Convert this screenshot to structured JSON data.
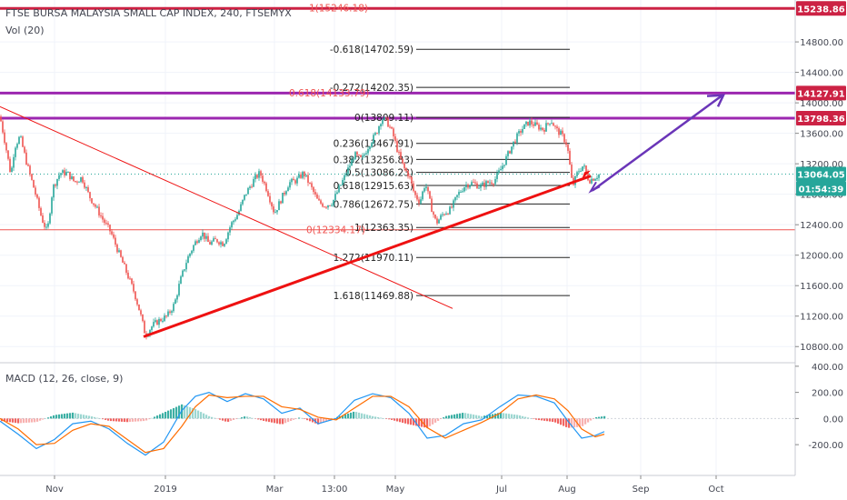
{
  "header": {
    "symbol_line": "FTSE BURSA MALAYSIA SMALL CAP INDEX, 240, FTSEMYX",
    "volume_label": "Vol (20)",
    "macd_label": "MACD (12, 26, close, 9)"
  },
  "colors": {
    "up": "#26a69a",
    "down": "#ef5350",
    "level_line": "#cc2244",
    "purple": "#9c27b0",
    "trend": "#ee1111",
    "arrow": "#6a35b8",
    "macd_line": "#2196f3",
    "signal_line": "#ff6d00",
    "current_price": "#26a69a"
  },
  "chart_data": {
    "type": "candlestick",
    "x_ticks": [
      "Nov",
      "2019",
      "Mar",
      "13:00",
      "May",
      "Jul",
      "Aug",
      "Sep",
      "Oct"
    ],
    "price_axis": {
      "ylim": [
        10600,
        15350
      ],
      "ticks": [
        "10800.00",
        "11200.00",
        "11600.00",
        "12000.00",
        "12400.00",
        "12800.00",
        "13200.00",
        "13600.00",
        "14000.00",
        "14400.00",
        "14800.00"
      ]
    },
    "price_badges": [
      {
        "label": "15238.86",
        "value": 15238.86,
        "color": "#cc2244"
      },
      {
        "label": "14127.91",
        "value": 14127.91,
        "color": "#cc2244"
      },
      {
        "label": "13798.36",
        "value": 13798.36,
        "color": "#cc2244"
      },
      {
        "label": "13064.05",
        "value": 13064.05,
        "color": "#26a69a"
      },
      {
        "label": "01:54:39",
        "value": 12920,
        "color": "#26a69a"
      }
    ],
    "horizontal_levels": [
      {
        "value": 15238.86,
        "color": "#cc2244",
        "style": "thick"
      },
      {
        "value": 14127.91,
        "color": "#9c27b0",
        "style": "thick"
      },
      {
        "value": 13798.36,
        "color": "#9c27b0",
        "style": "thick"
      },
      {
        "value": 12334.17,
        "color": "#ef5350",
        "style": "thin"
      },
      {
        "value": 13064.05,
        "color": "#26a69a",
        "style": "dotted"
      }
    ],
    "fib_retracement_main": [
      {
        "label": "-0.618(14702.59)",
        "value": 14702.59
      },
      {
        "label": "-0.272(14202.35)",
        "value": 14202.35
      },
      {
        "label": "0(13809.11)",
        "value": 13809.11
      },
      {
        "label": "0.236(13467.91)",
        "value": 13467.91
      },
      {
        "label": "0.382(13256.83)",
        "value": 13256.83
      },
      {
        "label": "0.5(13086.23)",
        "value": 13086.23
      },
      {
        "label": "0.618(12915.63)",
        "value": 12915.63
      },
      {
        "label": "0.786(12672.75)",
        "value": 12672.75
      },
      {
        "label": "1(12363.35)",
        "value": 12363.35
      },
      {
        "label": "1.272(11970.11)",
        "value": 11970.11
      },
      {
        "label": "1.618(11469.88)",
        "value": 11469.88
      }
    ],
    "fib_retracement_other": [
      {
        "label": "1(15246.18)",
        "value": 15246.18
      },
      {
        "label": "0.618(14133.79)",
        "value": 14133.79
      },
      {
        "label": "0(12334.17)",
        "value": 12334.17
      }
    ],
    "macd_axis": {
      "ylim": [
        -380,
        420
      ],
      "ticks": [
        "400.00",
        "200.00",
        "0.00",
        "-200.00"
      ]
    },
    "close_path": [
      [
        0,
        13820
      ],
      [
        6,
        13450
      ],
      [
        12,
        13050
      ],
      [
        16,
        13420
      ],
      [
        22,
        13560
      ],
      [
        30,
        13180
      ],
      [
        38,
        12850
      ],
      [
        46,
        12480
      ],
      [
        52,
        12300
      ],
      [
        58,
        12880
      ],
      [
        66,
        13080
      ],
      [
        74,
        13080
      ],
      [
        82,
        12960
      ],
      [
        90,
        13020
      ],
      [
        98,
        12780
      ],
      [
        106,
        12620
      ],
      [
        114,
        12450
      ],
      [
        122,
        12300
      ],
      [
        130,
        12050
      ],
      [
        140,
        11750
      ],
      [
        148,
        11500
      ],
      [
        154,
        11250
      ],
      [
        160,
        10950
      ],
      [
        168,
        11080
      ],
      [
        176,
        11150
      ],
      [
        184,
        11200
      ],
      [
        192,
        11360
      ],
      [
        198,
        11650
      ],
      [
        206,
        11950
      ],
      [
        214,
        12150
      ],
      [
        222,
        12300
      ],
      [
        230,
        12150
      ],
      [
        238,
        12200
      ],
      [
        246,
        12150
      ],
      [
        254,
        12400
      ],
      [
        262,
        12550
      ],
      [
        270,
        12800
      ],
      [
        280,
        13000
      ],
      [
        286,
        13080
      ],
      [
        294,
        12850
      ],
      [
        302,
        12550
      ],
      [
        310,
        12750
      ],
      [
        318,
        12950
      ],
      [
        326,
        12980
      ],
      [
        334,
        13080
      ],
      [
        342,
        12900
      ],
      [
        350,
        12700
      ],
      [
        358,
        12650
      ],
      [
        366,
        12700
      ],
      [
        374,
        12900
      ],
      [
        382,
        13100
      ],
      [
        390,
        13320
      ],
      [
        398,
        13250
      ],
      [
        406,
        13450
      ],
      [
        414,
        13600
      ],
      [
        420,
        13800
      ],
      [
        426,
        13750
      ],
      [
        432,
        13600
      ],
      [
        438,
        13350
      ],
      [
        444,
        13150
      ],
      [
        450,
        13050
      ],
      [
        456,
        12800
      ],
      [
        462,
        12700
      ],
      [
        468,
        12950
      ],
      [
        474,
        12650
      ],
      [
        480,
        12420
      ],
      [
        488,
        12550
      ],
      [
        496,
        12600
      ],
      [
        504,
        12800
      ],
      [
        512,
        12920
      ],
      [
        520,
        12950
      ],
      [
        528,
        12900
      ],
      [
        536,
        12950
      ],
      [
        544,
        12980
      ],
      [
        552,
        13150
      ],
      [
        558,
        13300
      ],
      [
        566,
        13500
      ],
      [
        574,
        13650
      ],
      [
        582,
        13750
      ],
      [
        590,
        13700
      ],
      [
        598,
        13650
      ],
      [
        606,
        13780
      ],
      [
        612,
        13650
      ],
      [
        618,
        13580
      ],
      [
        624,
        13450
      ],
      [
        630,
        12900
      ],
      [
        636,
        13100
      ],
      [
        642,
        13180
      ],
      [
        648,
        12980
      ],
      [
        654,
        13020
      ],
      [
        660,
        13064
      ]
    ],
    "macd_path": [
      [
        0,
        -20
      ],
      [
        20,
        -120
      ],
      [
        40,
        -230
      ],
      [
        60,
        -160
      ],
      [
        80,
        -40
      ],
      [
        100,
        -20
      ],
      [
        120,
        -80
      ],
      [
        140,
        -190
      ],
      [
        160,
        -280
      ],
      [
        180,
        -180
      ],
      [
        200,
        60
      ],
      [
        215,
        170
      ],
      [
        230,
        200
      ],
      [
        250,
        130
      ],
      [
        270,
        190
      ],
      [
        290,
        150
      ],
      [
        310,
        40
      ],
      [
        330,
        80
      ],
      [
        350,
        -40
      ],
      [
        370,
        0
      ],
      [
        390,
        140
      ],
      [
        410,
        190
      ],
      [
        430,
        160
      ],
      [
        450,
        40
      ],
      [
        470,
        -150
      ],
      [
        490,
        -130
      ],
      [
        510,
        -40
      ],
      [
        530,
        -10
      ],
      [
        550,
        90
      ],
      [
        570,
        180
      ],
      [
        590,
        170
      ],
      [
        610,
        120
      ],
      [
        625,
        -20
      ],
      [
        640,
        -150
      ],
      [
        655,
        -130
      ],
      [
        665,
        -100
      ]
    ],
    "signal_path": [
      [
        0,
        0
      ],
      [
        20,
        -80
      ],
      [
        40,
        -200
      ],
      [
        60,
        -190
      ],
      [
        80,
        -90
      ],
      [
        100,
        -40
      ],
      [
        120,
        -60
      ],
      [
        140,
        -160
      ],
      [
        160,
        -260
      ],
      [
        180,
        -230
      ],
      [
        200,
        -60
      ],
      [
        215,
        90
      ],
      [
        230,
        180
      ],
      [
        250,
        160
      ],
      [
        270,
        170
      ],
      [
        290,
        170
      ],
      [
        310,
        90
      ],
      [
        330,
        70
      ],
      [
        350,
        10
      ],
      [
        370,
        -10
      ],
      [
        390,
        80
      ],
      [
        410,
        170
      ],
      [
        430,
        170
      ],
      [
        450,
        90
      ],
      [
        470,
        -70
      ],
      [
        490,
        -150
      ],
      [
        510,
        -90
      ],
      [
        530,
        -30
      ],
      [
        550,
        40
      ],
      [
        570,
        150
      ],
      [
        590,
        180
      ],
      [
        610,
        150
      ],
      [
        625,
        60
      ],
      [
        640,
        -80
      ],
      [
        655,
        -140
      ],
      [
        665,
        -120
      ]
    ]
  }
}
